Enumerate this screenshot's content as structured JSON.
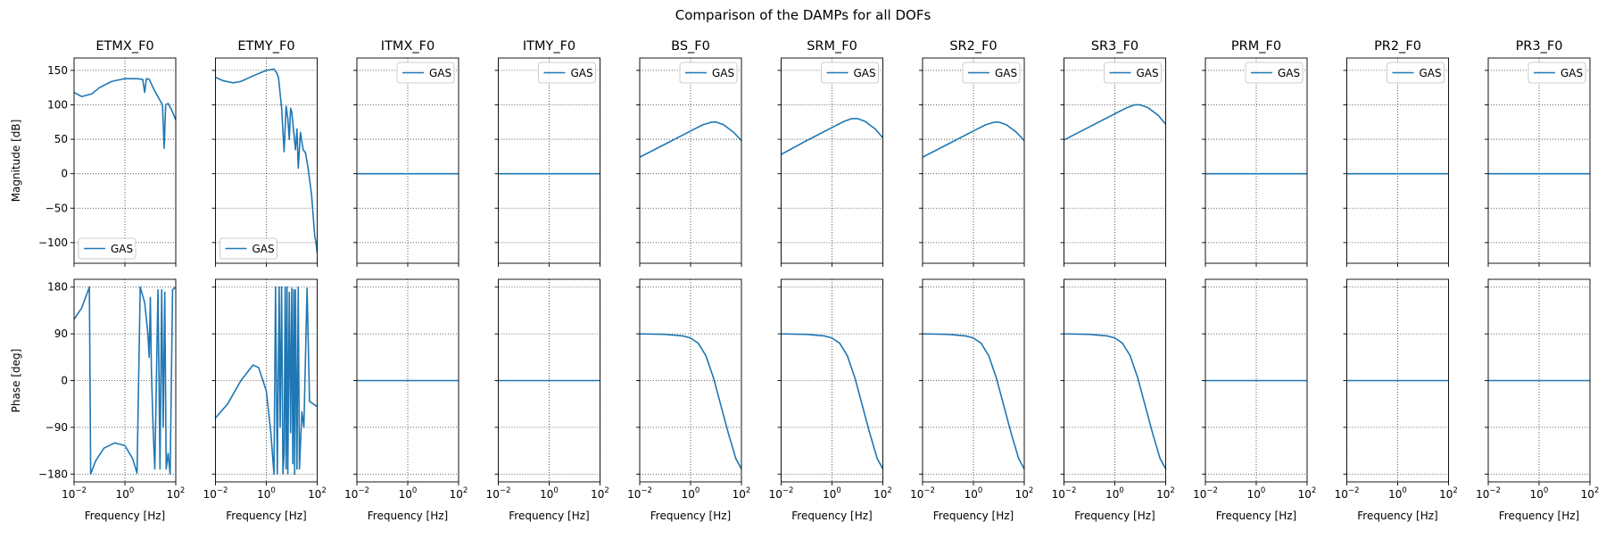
{
  "figure": {
    "title": "Comparison of the DAMPs for all DOFs"
  },
  "chart_data": {
    "type": "line",
    "series_color": "#1f77b4",
    "grid": true,
    "grid_style": "dotted",
    "x_scale": "log",
    "xlim": [
      0.01,
      100
    ],
    "x_ticks": [
      0.01,
      1,
      100
    ],
    "x_tick_labels": [
      "10^-2",
      "10^0",
      "10^2"
    ],
    "xlabel": "Frequency [Hz]",
    "magnitude": {
      "ylabel": "Magnitude [dB]",
      "ylim": [
        -130,
        168
      ],
      "y_ticks": [
        -100,
        -50,
        0,
        50,
        100,
        150
      ],
      "y_tick_labels": [
        "−100",
        "−50",
        "0",
        "50",
        "100",
        "150"
      ]
    },
    "phase": {
      "ylabel": "Phase [deg]",
      "ylim": [
        -195,
        195
      ],
      "y_ticks": [
        -180,
        -90,
        0,
        90,
        180
      ],
      "y_tick_labels": [
        "−180",
        "−90",
        "0",
        "90",
        "180"
      ]
    },
    "panels": [
      {
        "title": "ETMX_F0",
        "legend": {
          "label": "GAS",
          "loc": "lower left"
        },
        "magnitude": {
          "points": [
            [
              0.01,
              118
            ],
            [
              0.02,
              112
            ],
            [
              0.05,
              116
            ],
            [
              0.1,
              125
            ],
            [
              0.3,
              134
            ],
            [
              1,
              138
            ],
            [
              3,
              138
            ],
            [
              5,
              137
            ],
            [
              6,
              118
            ],
            [
              7,
              138
            ],
            [
              9,
              137
            ],
            [
              15,
              120
            ],
            [
              30,
              100
            ],
            [
              35,
              37
            ],
            [
              40,
              100
            ],
            [
              50,
              102
            ],
            [
              70,
              92
            ],
            [
              100,
              78
            ]
          ]
        },
        "phase": {
          "points": [
            [
              0.01,
              118
            ],
            [
              0.02,
              140
            ],
            [
              0.04,
              180
            ],
            [
              0.045,
              -180
            ],
            [
              0.07,
              -155
            ],
            [
              0.15,
              -130
            ],
            [
              0.4,
              -120
            ],
            [
              1,
              -125
            ],
            [
              2,
              -150
            ],
            [
              3,
              -178
            ],
            [
              4,
              180
            ],
            [
              6,
              150
            ],
            [
              8,
              90
            ],
            [
              9,
              45
            ],
            [
              10,
              160
            ],
            [
              11,
              20
            ],
            [
              13,
              -100
            ],
            [
              15,
              -170
            ],
            [
              20,
              175
            ],
            [
              24,
              -170
            ],
            [
              28,
              175
            ],
            [
              32,
              -90
            ],
            [
              37,
              170
            ],
            [
              42,
              -170
            ],
            [
              50,
              -140
            ],
            [
              60,
              -180
            ],
            [
              75,
              175
            ],
            [
              100,
              180
            ]
          ]
        }
      },
      {
        "title": "ETMY_F0",
        "legend": {
          "label": "GAS",
          "loc": "lower left"
        },
        "magnitude": {
          "points": [
            [
              0.01,
              140
            ],
            [
              0.02,
              135
            ],
            [
              0.05,
              132
            ],
            [
              0.1,
              134
            ],
            [
              0.3,
              142
            ],
            [
              1,
              150
            ],
            [
              2,
              152
            ],
            [
              2.5,
              147
            ],
            [
              3,
              140
            ],
            [
              4,
              95
            ],
            [
              5,
              32
            ],
            [
              6,
              98
            ],
            [
              7,
              80
            ],
            [
              8,
              50
            ],
            [
              9,
              95
            ],
            [
              10,
              90
            ],
            [
              12,
              60
            ],
            [
              14,
              35
            ],
            [
              16,
              65
            ],
            [
              18,
              8
            ],
            [
              22,
              60
            ],
            [
              28,
              35
            ],
            [
              35,
              30
            ],
            [
              45,
              5
            ],
            [
              60,
              -30
            ],
            [
              80,
              -90
            ],
            [
              90,
              -100
            ],
            [
              100,
              -115
            ]
          ]
        },
        "phase": {
          "points": [
            [
              0.01,
              -72
            ],
            [
              0.03,
              -45
            ],
            [
              0.1,
              0
            ],
            [
              0.3,
              30
            ],
            [
              0.5,
              25
            ],
            [
              1,
              -20
            ],
            [
              1.5,
              -100
            ],
            [
              2,
              -180
            ],
            [
              2.3,
              180
            ],
            [
              2.7,
              -180
            ],
            [
              3.2,
              180
            ],
            [
              3.5,
              -90
            ],
            [
              4,
              180
            ],
            [
              4.5,
              -180
            ],
            [
              5,
              -140
            ],
            [
              5.5,
              180
            ],
            [
              6,
              -170
            ],
            [
              6.5,
              180
            ],
            [
              7,
              -180
            ],
            [
              8,
              170
            ],
            [
              9,
              -100
            ],
            [
              10,
              178
            ],
            [
              11,
              -160
            ],
            [
              12,
              175
            ],
            [
              13,
              -180
            ],
            [
              14,
              175
            ],
            [
              16,
              -170
            ],
            [
              18,
              180
            ],
            [
              20,
              -170
            ],
            [
              25,
              -60
            ],
            [
              30,
              -90
            ],
            [
              40,
              178
            ],
            [
              50,
              -40
            ],
            [
              100,
              -50
            ]
          ]
        }
      },
      {
        "title": "ITMX_F0",
        "legend": {
          "label": "GAS",
          "loc": "upper right"
        },
        "magnitude": {
          "points": [
            [
              0.01,
              0
            ],
            [
              100,
              0
            ]
          ]
        },
        "phase": {
          "points": [
            [
              0.01,
              0
            ],
            [
              100,
              0
            ]
          ]
        }
      },
      {
        "title": "ITMY_F0",
        "legend": {
          "label": "GAS",
          "loc": "upper right"
        },
        "magnitude": {
          "points": [
            [
              0.01,
              0
            ],
            [
              100,
              0
            ]
          ]
        },
        "phase": {
          "points": [
            [
              0.01,
              0
            ],
            [
              100,
              0
            ]
          ]
        }
      },
      {
        "title": "BS_F0",
        "legend": {
          "label": "GAS",
          "loc": "upper right"
        },
        "magnitude": {
          "points": [
            [
              0.01,
              24
            ],
            [
              0.1,
              43
            ],
            [
              1,
              62
            ],
            [
              3,
              71
            ],
            [
              7,
              75
            ],
            [
              10,
              75
            ],
            [
              20,
              71
            ],
            [
              50,
              60
            ],
            [
              100,
              48
            ]
          ]
        },
        "phase": {
          "points": [
            [
              0.01,
              90
            ],
            [
              0.1,
              89
            ],
            [
              0.5,
              86
            ],
            [
              1,
              82
            ],
            [
              2,
              72
            ],
            [
              4,
              48
            ],
            [
              8,
              5
            ],
            [
              15,
              -45
            ],
            [
              30,
              -100
            ],
            [
              60,
              -150
            ],
            [
              100,
              -170
            ]
          ]
        }
      },
      {
        "title": "SRM_F0",
        "legend": {
          "label": "GAS",
          "loc": "upper right"
        },
        "magnitude": {
          "points": [
            [
              0.01,
              28
            ],
            [
              0.1,
              48
            ],
            [
              1,
              67
            ],
            [
              3,
              76
            ],
            [
              6,
              80
            ],
            [
              10,
              80
            ],
            [
              20,
              76
            ],
            [
              50,
              65
            ],
            [
              100,
              52
            ]
          ]
        },
        "phase": {
          "points": [
            [
              0.01,
              90
            ],
            [
              0.1,
              89
            ],
            [
              0.5,
              86
            ],
            [
              1,
              82
            ],
            [
              2,
              72
            ],
            [
              4,
              48
            ],
            [
              8,
              5
            ],
            [
              15,
              -45
            ],
            [
              30,
              -100
            ],
            [
              60,
              -150
            ],
            [
              100,
              -170
            ]
          ]
        }
      },
      {
        "title": "SR2_F0",
        "legend": {
          "label": "GAS",
          "loc": "upper right"
        },
        "magnitude": {
          "points": [
            [
              0.01,
              24
            ],
            [
              0.1,
              43
            ],
            [
              1,
              62
            ],
            [
              3,
              71
            ],
            [
              7,
              75
            ],
            [
              10,
              75
            ],
            [
              20,
              71
            ],
            [
              50,
              60
            ],
            [
              100,
              48
            ]
          ]
        },
        "phase": {
          "points": [
            [
              0.01,
              90
            ],
            [
              0.1,
              89
            ],
            [
              0.5,
              86
            ],
            [
              1,
              82
            ],
            [
              2,
              72
            ],
            [
              4,
              48
            ],
            [
              8,
              5
            ],
            [
              15,
              -45
            ],
            [
              30,
              -100
            ],
            [
              60,
              -150
            ],
            [
              100,
              -170
            ]
          ]
        }
      },
      {
        "title": "SR3_F0",
        "legend": {
          "label": "GAS",
          "loc": "upper right"
        },
        "magnitude": {
          "points": [
            [
              0.01,
              49
            ],
            [
              0.1,
              68
            ],
            [
              1,
              87
            ],
            [
              3,
              96
            ],
            [
              6,
              100
            ],
            [
              10,
              100
            ],
            [
              20,
              96
            ],
            [
              50,
              85
            ],
            [
              100,
              72
            ]
          ]
        },
        "phase": {
          "points": [
            [
              0.01,
              90
            ],
            [
              0.1,
              89
            ],
            [
              0.5,
              86
            ],
            [
              1,
              82
            ],
            [
              2,
              72
            ],
            [
              4,
              48
            ],
            [
              8,
              5
            ],
            [
              15,
              -45
            ],
            [
              30,
              -100
            ],
            [
              60,
              -150
            ],
            [
              100,
              -170
            ]
          ]
        }
      },
      {
        "title": "PRM_F0",
        "legend": {
          "label": "GAS",
          "loc": "upper right"
        },
        "magnitude": {
          "points": [
            [
              0.01,
              0
            ],
            [
              100,
              0
            ]
          ]
        },
        "phase": {
          "points": [
            [
              0.01,
              0
            ],
            [
              100,
              0
            ]
          ]
        }
      },
      {
        "title": "PR2_F0",
        "legend": {
          "label": "GAS",
          "loc": "upper right"
        },
        "magnitude": {
          "points": [
            [
              0.01,
              0
            ],
            [
              100,
              0
            ]
          ]
        },
        "phase": {
          "points": [
            [
              0.01,
              0
            ],
            [
              100,
              0
            ]
          ]
        }
      },
      {
        "title": "PR3_F0",
        "legend": {
          "label": "GAS",
          "loc": "upper right"
        },
        "magnitude": {
          "points": [
            [
              0.01,
              0
            ],
            [
              100,
              0
            ]
          ]
        },
        "phase": {
          "points": [
            [
              0.01,
              0
            ],
            [
              100,
              0
            ]
          ]
        }
      }
    ]
  }
}
